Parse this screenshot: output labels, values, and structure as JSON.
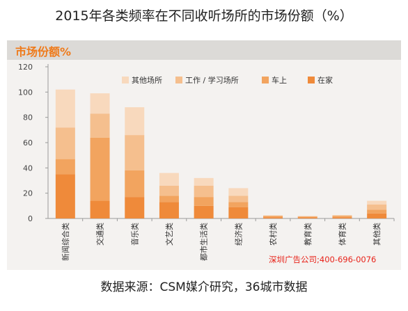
{
  "title": "2015年各类频率在不同收听场所的市场份额（%）",
  "panel_title": "市场份额%",
  "watermark": "深圳广告公司;400-696-0076",
  "source": "数据来源：CSM媒介研究，36城市数据",
  "chart_data": {
    "type": "bar",
    "stacked": true,
    "categories": [
      "新闻综合类",
      "交通类",
      "音乐类",
      "文艺类",
      "都市生活类",
      "经济类",
      "农村类",
      "教育类",
      "体育类",
      "其他类"
    ],
    "series": [
      {
        "name": "在家",
        "color": "#ef8a3a",
        "values": [
          35,
          14,
          17,
          13,
          10,
          9,
          1,
          1,
          1,
          4
        ]
      },
      {
        "name": "车上",
        "color": "#f2a45f",
        "values": [
          12,
          50,
          21,
          5,
          7,
          4,
          1,
          0.5,
          1,
          3
        ]
      },
      {
        "name": "工作  / 学习场所",
        "color": "#f5bf8e",
        "values": [
          25,
          19,
          28,
          8,
          9,
          5,
          0.3,
          0.3,
          0.5,
          4
        ]
      },
      {
        "name": "其他场所",
        "color": "#f8d9bd",
        "values": [
          30,
          16,
          22,
          10,
          6,
          6,
          0.2,
          0.2,
          0.2,
          3
        ]
      }
    ],
    "legend_order": [
      "其他场所",
      "工作  / 学习场所",
      "车上",
      "在家"
    ],
    "ylim": [
      0,
      120
    ],
    "yticks": [
      0,
      20,
      40,
      60,
      80,
      100,
      120
    ],
    "grid": false,
    "legend_position": "top-right"
  }
}
